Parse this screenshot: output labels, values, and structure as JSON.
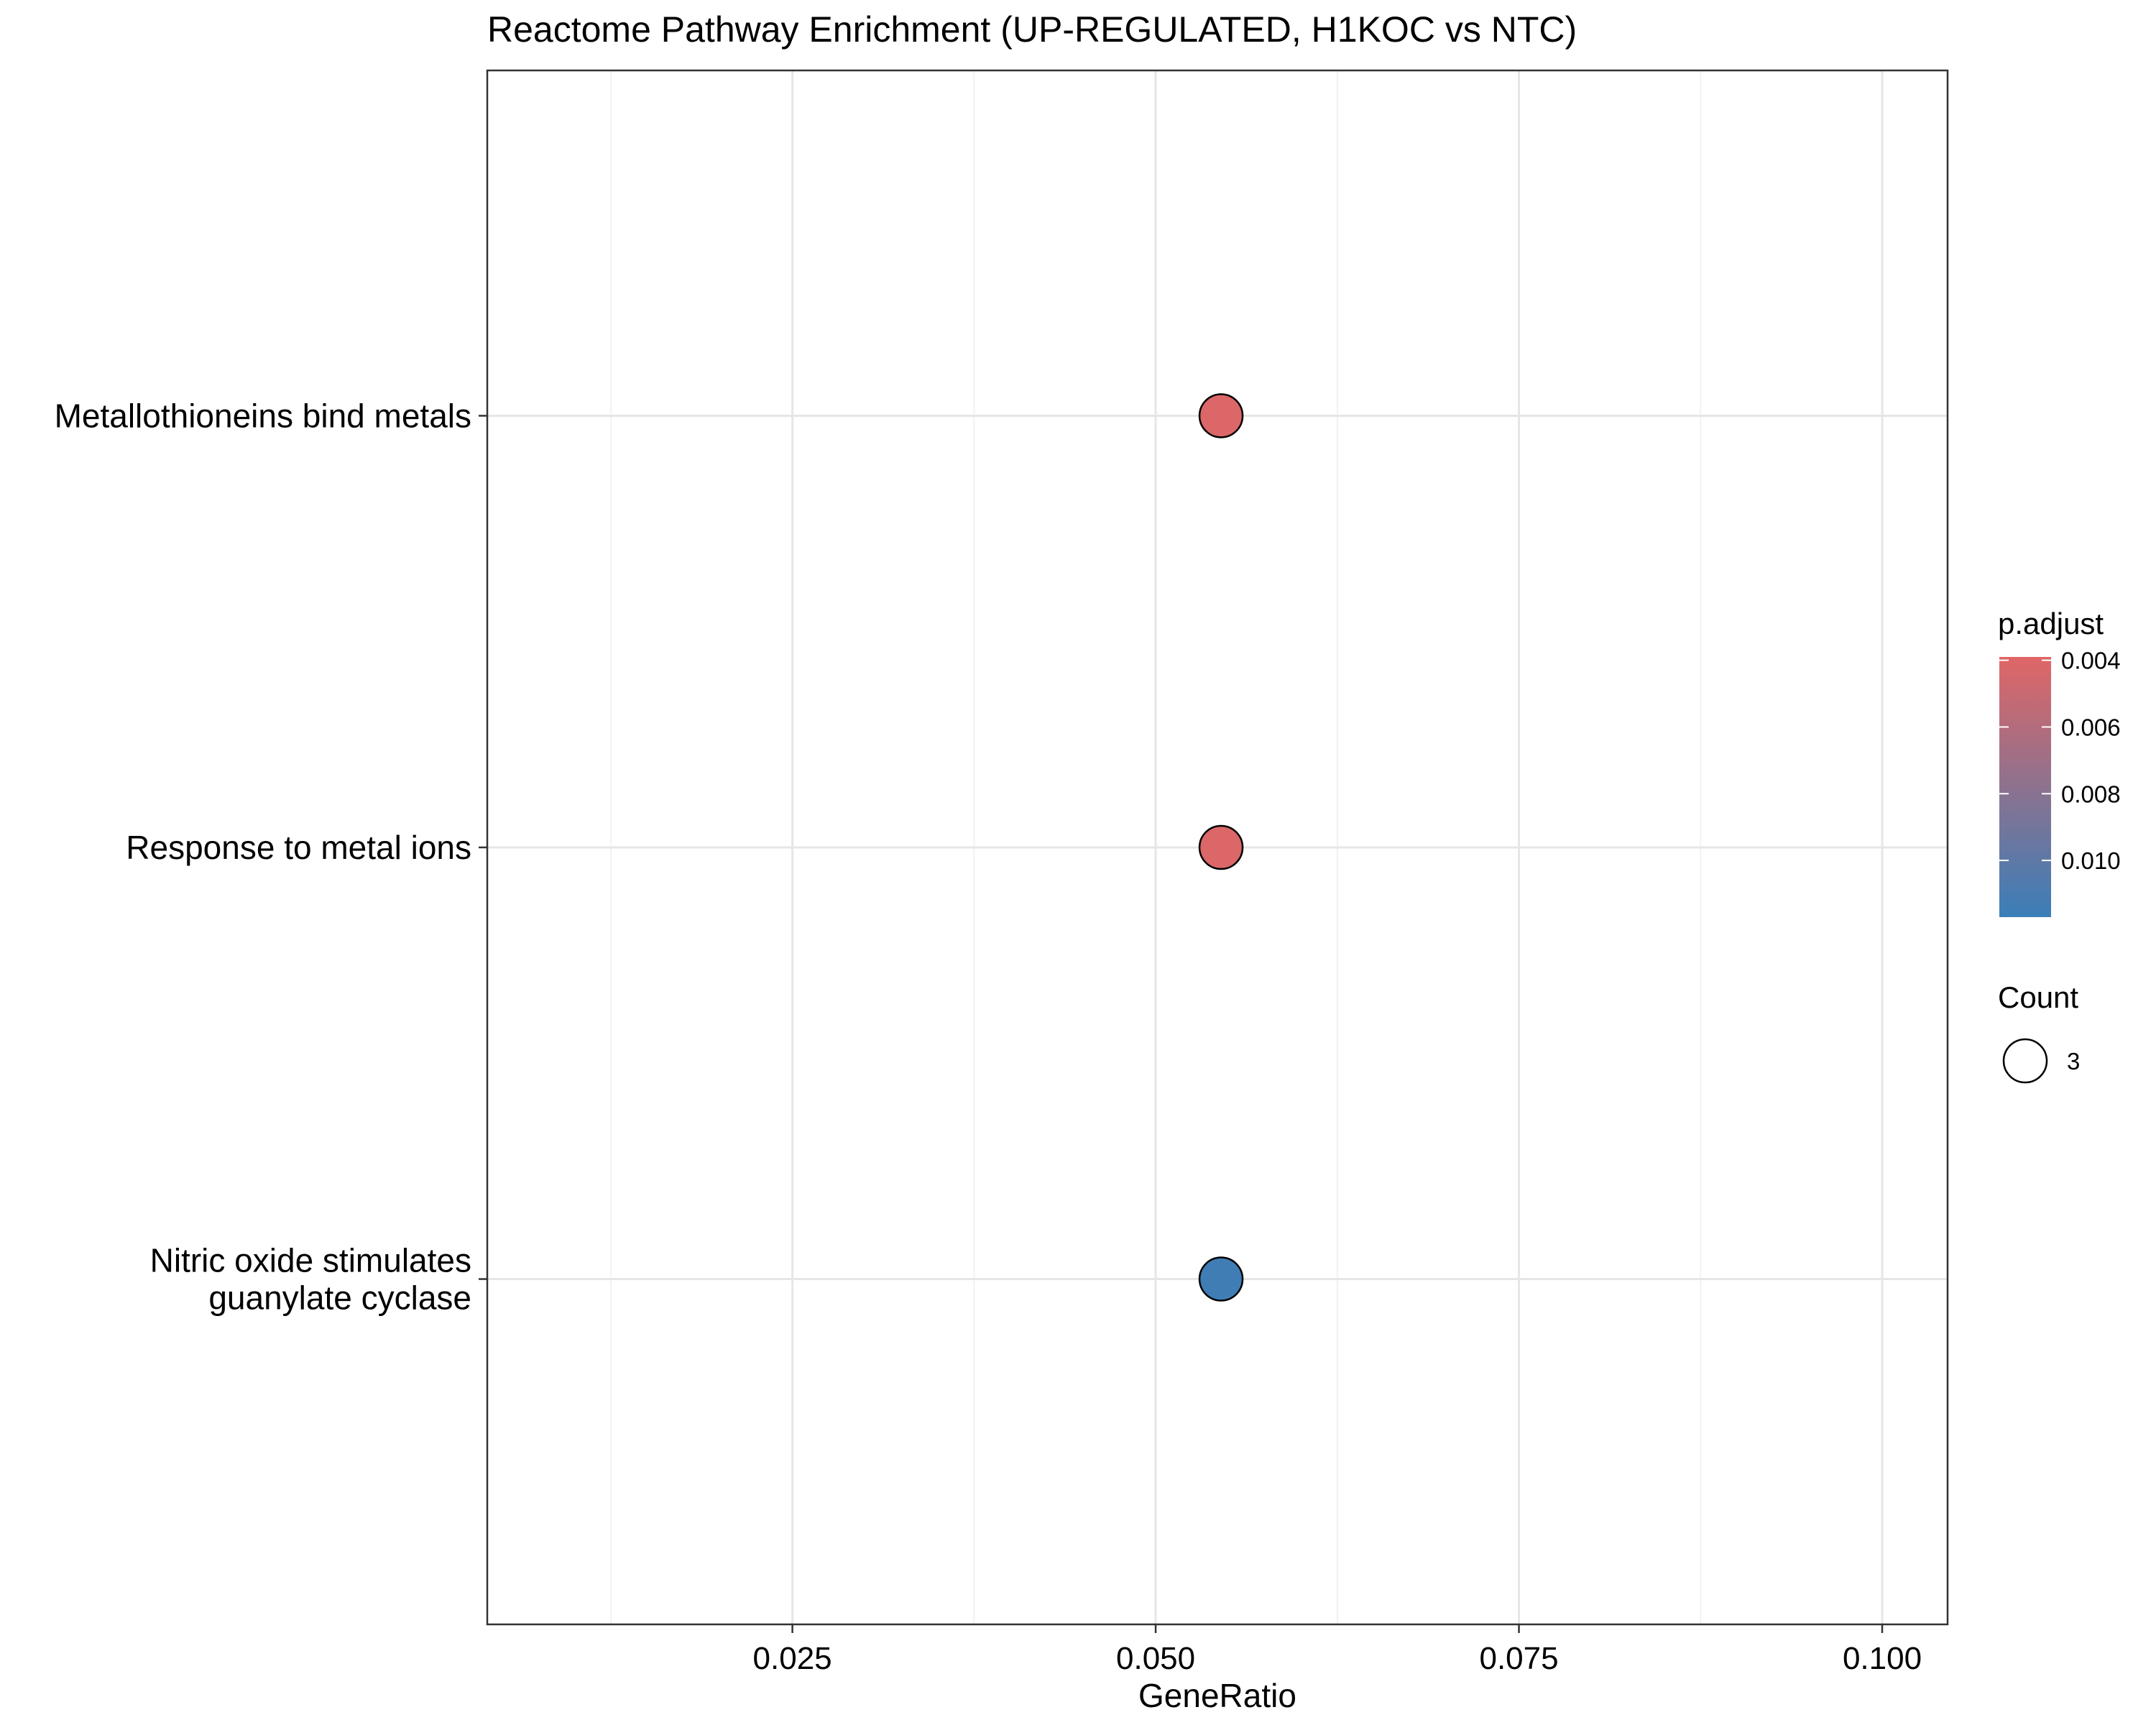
{
  "chart_data": {
    "type": "scatter",
    "title": "Reactome Pathway Enrichment (UP-REGULATED, H1KOC vs NTC)",
    "xlabel": "GeneRatio",
    "ylabel": "",
    "xlim": [
      0.004,
      0.1045
    ],
    "x_ticks": [
      0.025,
      0.05,
      0.075,
      0.1
    ],
    "x_tick_labels": [
      "0.025",
      "0.050",
      "0.075",
      "0.100"
    ],
    "x_minor_ticks": [
      0.0125,
      0.0375,
      0.0625,
      0.0875
    ],
    "grid": true,
    "categories": [
      [
        "Metallothioneins bind metals"
      ],
      [
        "Response to metal ions"
      ],
      [
        "Nitric oxide stimulates",
        "guanylate cyclase"
      ]
    ],
    "points": [
      {
        "x": 0.0545,
        "p_adjust": 0.0041,
        "count": 3
      },
      {
        "x": 0.0545,
        "p_adjust": 0.0041,
        "count": 3
      },
      {
        "x": 0.0545,
        "p_adjust": 0.0114,
        "count": 3
      }
    ],
    "color_legend": {
      "title": "p.adjust",
      "ticks": [
        0.004,
        0.006,
        0.008,
        0.01
      ],
      "tick_labels": [
        "0.004",
        "0.006",
        "0.008",
        "0.010"
      ],
      "range": [
        0.0039,
        0.0117
      ],
      "low_color": "#E06666",
      "high_color": "#3A7EB8"
    },
    "size_legend": {
      "title": "Count",
      "values": [
        3
      ],
      "labels": [
        "3"
      ]
    },
    "legend_position": "right"
  }
}
